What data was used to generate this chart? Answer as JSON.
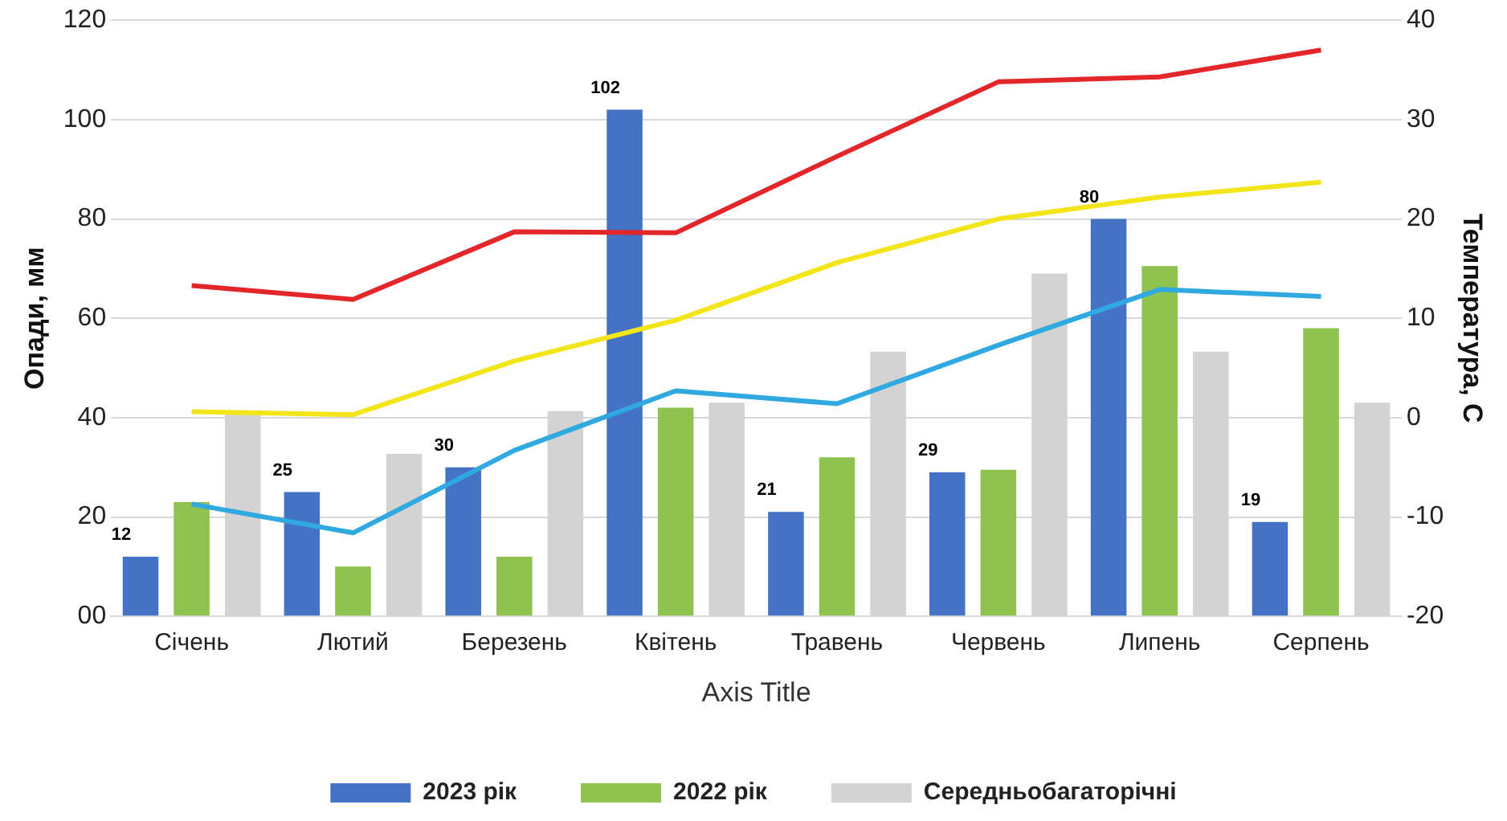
{
  "chart_data": {
    "type": "bar",
    "xlabel": "Axis Title",
    "ylabel": "Опади, мм",
    "y2label": "Температура, С",
    "categories": [
      "Січень",
      "Лютий",
      "Березень",
      "Квітень",
      "Травень",
      "Червень",
      "Липень",
      "Серпень"
    ],
    "series": [
      {
        "name": "2023 рік",
        "color": "#4472c4",
        "values": [
          12,
          25,
          30,
          102,
          21,
          29,
          80,
          19
        ],
        "value_labels": [
          "12",
          "25",
          "30",
          "102",
          "21",
          "29",
          "80",
          "19"
        ]
      },
      {
        "name": "2022 рік",
        "color": "#8fc34f",
        "values": [
          23,
          10,
          12,
          42,
          32,
          29.5,
          70.5,
          58
        ]
      },
      {
        "name": "Середньобагаторічні",
        "color": "#d3d3d3",
        "values": [
          41,
          32.7,
          41.3,
          43,
          53.3,
          69,
          53.3,
          43
        ]
      },
      {
        "type": "line",
        "axis": "y2",
        "color": "#e3262a",
        "values": [
          13.3,
          11.9,
          18.7,
          18.6,
          26.3,
          33.8,
          34.3,
          37
        ]
      },
      {
        "type": "line",
        "axis": "y2",
        "color": "#f2e51a",
        "values": [
          0.6,
          0.3,
          5.7,
          9.8,
          15.6,
          20,
          22.2,
          23.7
        ]
      },
      {
        "type": "line",
        "axis": "y2",
        "color": "#2fa9e0",
        "values": [
          -8.7,
          -11.6,
          -3.3,
          2.7,
          1.4,
          7.3,
          12.9,
          12.2
        ]
      }
    ],
    "ylim": [
      0,
      120
    ],
    "yticks": [
      {
        "value": 0,
        "label": "00"
      },
      20,
      40,
      60,
      80,
      100,
      120
    ],
    "y2lim": [
      -20,
      40
    ],
    "y2ticks": [
      -20,
      -10,
      0,
      10,
      20,
      30,
      40
    ],
    "grid": "y",
    "legend": "bottom",
    "marker": "none"
  }
}
